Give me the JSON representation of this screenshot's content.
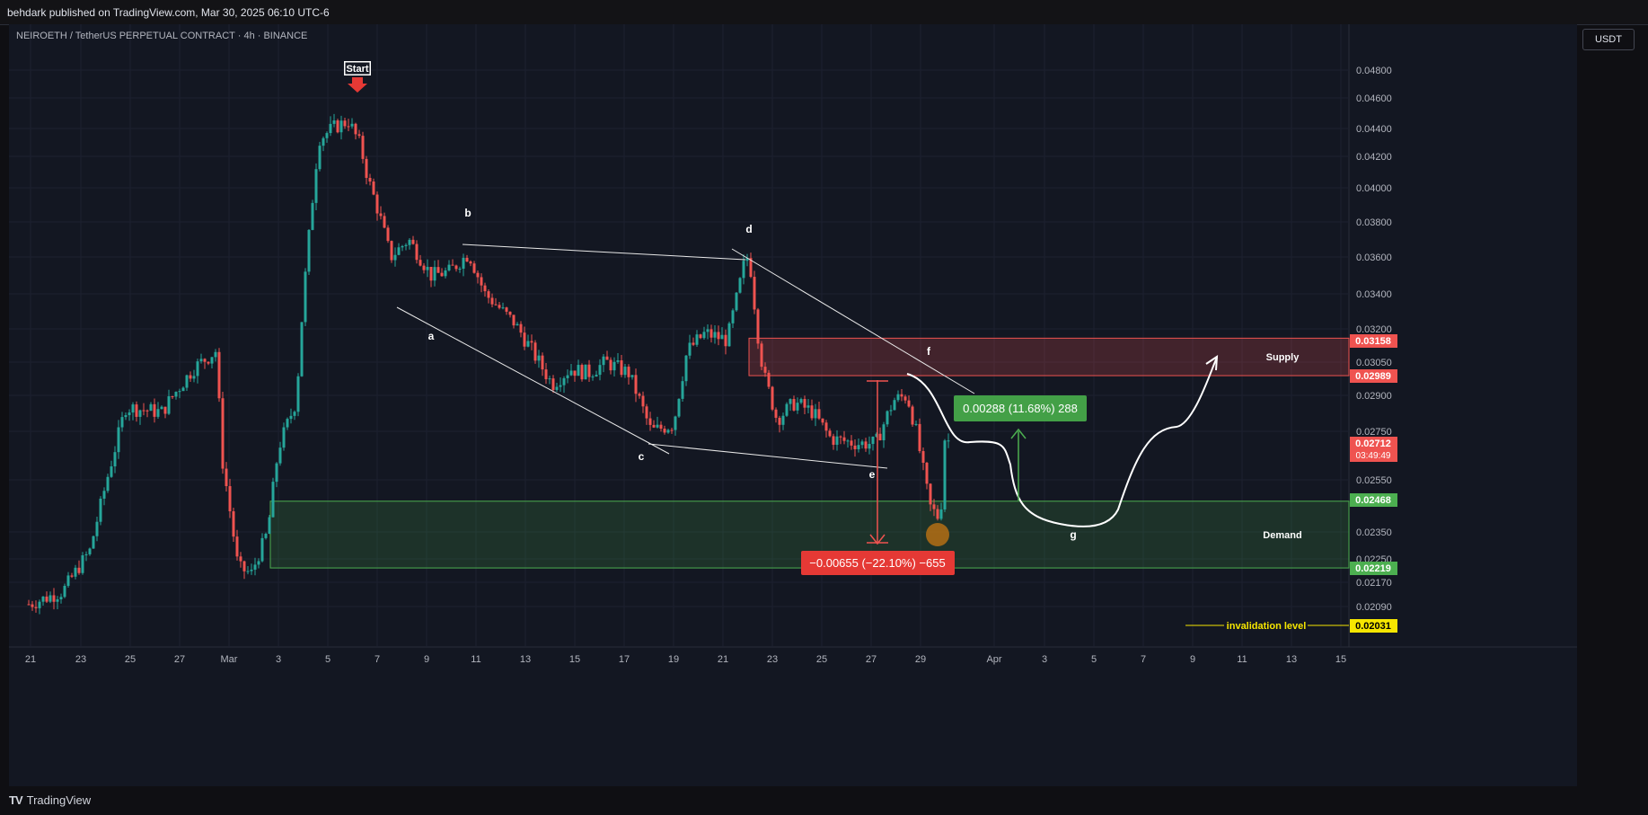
{
  "header": {
    "published": "behdark published on TradingView.com, Mar 30, 2025 06:10 UTC-6"
  },
  "symbol_line": "NEIROETH / TetherUS PERPETUAL CONTRACT · 4h · BINANCE",
  "currency_button": "USDT",
  "footer": {
    "brand": "TradingView",
    "logo": "TV"
  },
  "colors": {
    "background": "#131722",
    "up": "#26a69a",
    "down": "#ef5350",
    "supply": "#ef5350",
    "demand": "#4caf50",
    "invalidation": "#f6e600"
  },
  "chart_data": {
    "type": "candlestick",
    "x_ticks": [
      "21",
      "23",
      "25",
      "27",
      "Mar",
      "3",
      "5",
      "7",
      "9",
      "11",
      "13",
      "15",
      "17",
      "19",
      "21",
      "23",
      "25",
      "27",
      "29",
      "Apr",
      "3",
      "5",
      "7",
      "9",
      "11",
      "13",
      "15"
    ],
    "y_ticks": [
      "0.04800",
      "0.04600",
      "0.04400",
      "0.04200",
      "0.04000",
      "0.03800",
      "0.03600",
      "0.03400",
      "0.03200",
      "0.03050",
      "0.02900",
      "0.02750",
      "0.02550",
      "0.02350",
      "0.02250",
      "0.02170",
      "0.02090"
    ],
    "ylim": [
      0.0199,
      0.0499
    ],
    "price_tags": [
      {
        "label": "0.03158",
        "value": 0.03158,
        "color": "#ef5350"
      },
      {
        "label": "0.02989",
        "value": 0.02989,
        "color": "#ef5350"
      },
      {
        "label": "0.02712",
        "sub": "03:49:49",
        "value": 0.02712,
        "color": "#ef5350"
      },
      {
        "label": "0.02468",
        "value": 0.02468,
        "color": "#4caf50"
      },
      {
        "label": "0.02219",
        "value": 0.02219,
        "color": "#4caf50"
      },
      {
        "label": "0.02031",
        "value": 0.02031,
        "color": "#f6e600"
      }
    ],
    "zones": [
      {
        "name": "Supply",
        "top": 0.03158,
        "bottom": 0.02989,
        "color": "#ef5350"
      },
      {
        "name": "Demand",
        "top": 0.02468,
        "bottom": 0.02219,
        "color": "#4caf50"
      }
    ],
    "annotations": {
      "start": "Start",
      "wave_labels": [
        "a",
        "b",
        "c",
        "d",
        "e",
        "f",
        "g"
      ],
      "invalidation": "invalidation level",
      "up_measure": "0.00288 (11.68%) 288",
      "down_measure": "−0.00655 (−22.10%) −655"
    },
    "path_anchors": [
      {
        "bar": -2,
        "p": 0.0345
      },
      {
        "bar": -14,
        "p": 0.0383
      },
      {
        "bar": -36,
        "p": 0.0396
      },
      {
        "bar": -55,
        "p": 0.044
      },
      {
        "bar": -63,
        "p": 0.0455
      },
      {
        "bar": -74,
        "p": 0.044
      },
      {
        "bar": -77,
        "p": 0.0395
      },
      {
        "bar": -79,
        "p": 0.038
      },
      {
        "bar": -84,
        "p": 0.038
      },
      {
        "bar": -89,
        "p": 0.035
      },
      {
        "bar": -99,
        "p": 0.036
      },
      {
        "bar": -109,
        "p": 0.033
      },
      {
        "bar": -117,
        "p": 0.034
      },
      {
        "bar": -125,
        "p": 0.0305
      },
      {
        "bar": -135,
        "p": 0.031
      },
      {
        "bar": -145,
        "p": 0.027
      },
      {
        "bar": -154,
        "p": 0.028
      },
      {
        "bar": -163,
        "p": 0.032
      },
      {
        "bar": -174,
        "p": 0.031
      },
      {
        "bar": -182,
        "p": 0.035
      },
      {
        "bar": -185,
        "p": 0.03
      },
      {
        "bar": -195,
        "p": 0.0275
      },
      {
        "bar": -203,
        "p": 0.028
      },
      {
        "bar": -210,
        "p": 0.0265
      },
      {
        "bar": -216,
        "p": 0.0295
      },
      {
        "bar": -222,
        "p": 0.026
      },
      {
        "bar": -227,
        "p": 0.0233
      },
      {
        "bar": -234,
        "p": 0.027
      }
    ]
  }
}
